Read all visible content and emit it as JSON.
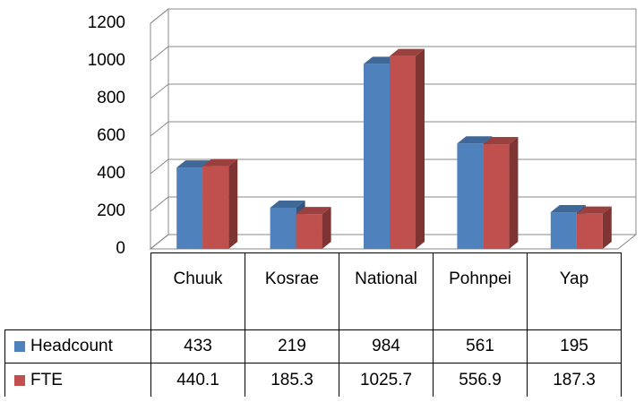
{
  "chart_data": {
    "type": "bar3d",
    "categories": [
      "Chuuk",
      "Kosrae",
      "National",
      "Pohnpei",
      "Yap"
    ],
    "series": [
      {
        "name": "Headcount",
        "color": "#4f81bd",
        "values": [
          433,
          219,
          984,
          561,
          195
        ]
      },
      {
        "name": "FTE",
        "color": "#c0504d",
        "values": [
          440.1,
          185.3,
          1025.7,
          556.9,
          187.3
        ]
      }
    ],
    "ylim": [
      0,
      1200
    ],
    "yticks": [
      0,
      200,
      400,
      600,
      800,
      1000,
      1200
    ],
    "grid": true,
    "legend": "table"
  }
}
